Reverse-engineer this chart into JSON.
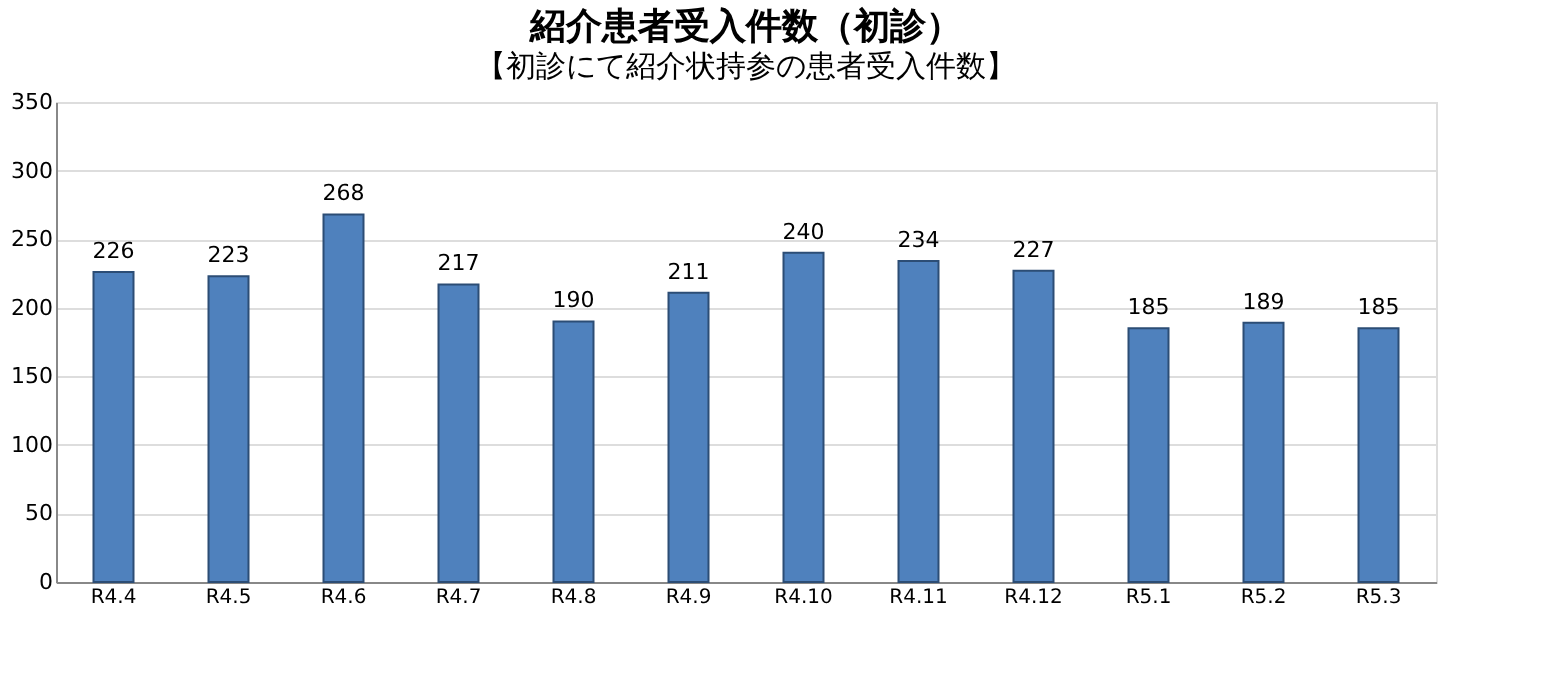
{
  "chart_data": {
    "type": "bar",
    "title": "紹介患者受入件数（初診）",
    "subtitle": "【初診にて紹介状持参の患者受入件数】",
    "categories": [
      "R4.4",
      "R4.5",
      "R4.6",
      "R4.7",
      "R4.8",
      "R4.9",
      "R4.10",
      "R4.11",
      "R4.12",
      "R5.1",
      "R5.2",
      "R5.3"
    ],
    "values": [
      226,
      223,
      268,
      217,
      190,
      211,
      240,
      234,
      227,
      185,
      189,
      185
    ],
    "color": "#4f81bd",
    "ylim": [
      0,
      350
    ],
    "yticks": [
      0,
      50,
      100,
      150,
      200,
      250,
      300,
      350
    ],
    "grid": "y",
    "data_labels": true
  }
}
